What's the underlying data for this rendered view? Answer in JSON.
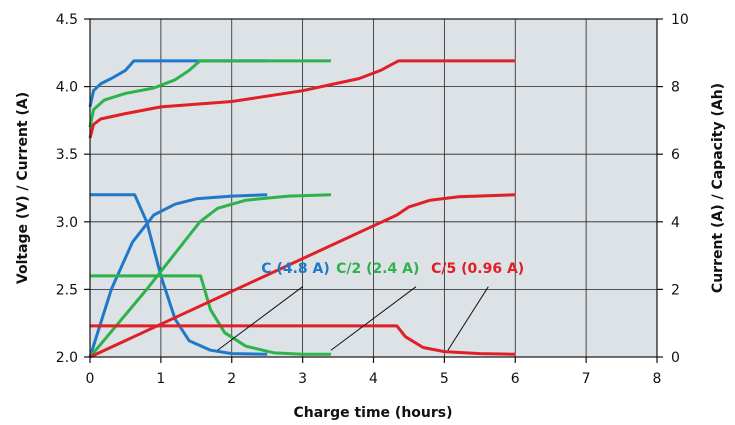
{
  "chart_data": {
    "type": "line",
    "title": "",
    "xlabel": "Charge time (hours)",
    "ylabel_left": "Voltage (V) / Current (A)",
    "ylabel_right": "Current (A) / Capacity (Ah)",
    "xlim": [
      0,
      8
    ],
    "ylim_left": [
      2.0,
      4.5
    ],
    "ylim_right": [
      0,
      10
    ],
    "x_ticks": [
      "0",
      "1",
      "2",
      "3",
      "4",
      "5",
      "6",
      "7",
      "8"
    ],
    "y_left_ticks": [
      "2.0",
      "2.5",
      "3.0",
      "3.5",
      "4.0",
      "4.5"
    ],
    "y_right_ticks": [
      "0",
      "2",
      "4",
      "6",
      "8",
      "10"
    ],
    "grid": true,
    "plot_background": "#dde2e7",
    "annotations": [
      {
        "text": "C (4.8 A)",
        "color": "#1f78c8",
        "anchor_x": 6.9,
        "anchor_y": 2.62,
        "target_x": 1.8,
        "target_y": 2.05
      },
      {
        "text": "C/2 (2.4 A)",
        "color": "#2db34a",
        "anchor_x": 4.6,
        "anchor_y": 2.62,
        "target_x": 3.4,
        "target_y": 2.05
      },
      {
        "text": "C/5 (0.96 A)",
        "color": "#e01f26",
        "anchor_x": 5.6,
        "anchor_y": 2.62,
        "target_x": 5.05,
        "target_y": 2.05
      }
    ],
    "series": [
      {
        "group": "C (4.8 A)",
        "quantity": "voltage",
        "axis": "left",
        "color": "#1f78c8",
        "points": [
          [
            0,
            3.85
          ],
          [
            0.05,
            3.97
          ],
          [
            0.15,
            4.02
          ],
          [
            0.3,
            4.06
          ],
          [
            0.5,
            4.12
          ],
          [
            0.62,
            4.19
          ],
          [
            1.0,
            4.19
          ],
          [
            2.0,
            4.19
          ],
          [
            2.5,
            4.19
          ]
        ]
      },
      {
        "group": "C (4.8 A)",
        "quantity": "current",
        "axis": "left",
        "color": "#1f78c8",
        "points": [
          [
            0,
            3.2
          ],
          [
            0.63,
            3.2
          ],
          [
            0.8,
            3.0
          ],
          [
            1.0,
            2.6
          ],
          [
            1.2,
            2.28
          ],
          [
            1.4,
            2.12
          ],
          [
            1.7,
            2.05
          ],
          [
            2.0,
            2.025
          ],
          [
            2.5,
            2.02
          ]
        ]
      },
      {
        "group": "C (4.8 A)",
        "quantity": "capacity",
        "axis": "left",
        "color": "#1f78c8",
        "points": [
          [
            0,
            2.0
          ],
          [
            0.3,
            2.5
          ],
          [
            0.6,
            2.85
          ],
          [
            0.9,
            3.05
          ],
          [
            1.2,
            3.13
          ],
          [
            1.5,
            3.17
          ],
          [
            2.0,
            3.19
          ],
          [
            2.5,
            3.2
          ]
        ]
      },
      {
        "group": "C/2 (2.4 A)",
        "quantity": "voltage",
        "axis": "left",
        "color": "#2db34a",
        "points": [
          [
            0,
            3.7
          ],
          [
            0.05,
            3.83
          ],
          [
            0.2,
            3.9
          ],
          [
            0.5,
            3.95
          ],
          [
            0.9,
            3.99
          ],
          [
            1.2,
            4.05
          ],
          [
            1.4,
            4.12
          ],
          [
            1.55,
            4.19
          ],
          [
            2.0,
            4.19
          ],
          [
            2.5,
            4.19
          ],
          [
            3.4,
            4.19
          ]
        ]
      },
      {
        "group": "C/2 (2.4 A)",
        "quantity": "current",
        "axis": "left",
        "color": "#2db34a",
        "points": [
          [
            0,
            2.6
          ],
          [
            1.56,
            2.6
          ],
          [
            1.7,
            2.35
          ],
          [
            1.9,
            2.18
          ],
          [
            2.2,
            2.08
          ],
          [
            2.6,
            2.03
          ],
          [
            3.0,
            2.02
          ],
          [
            3.4,
            2.02
          ]
        ]
      },
      {
        "group": "C/2 (2.4 A)",
        "quantity": "capacity",
        "axis": "left",
        "color": "#2db34a",
        "points": [
          [
            0,
            2.0
          ],
          [
            0.8,
            2.5
          ],
          [
            1.55,
            3.0
          ],
          [
            1.8,
            3.1
          ],
          [
            2.2,
            3.16
          ],
          [
            2.8,
            3.19
          ],
          [
            3.4,
            3.2
          ]
        ]
      },
      {
        "group": "C/5 (0.96 A)",
        "quantity": "voltage",
        "axis": "left",
        "color": "#e01f26",
        "points": [
          [
            0,
            3.62
          ],
          [
            0.05,
            3.72
          ],
          [
            0.15,
            3.76
          ],
          [
            0.5,
            3.8
          ],
          [
            1.0,
            3.85
          ],
          [
            2.0,
            3.89
          ],
          [
            3.0,
            3.97
          ],
          [
            3.8,
            4.06
          ],
          [
            4.1,
            4.12
          ],
          [
            4.35,
            4.19
          ],
          [
            5.0,
            4.19
          ],
          [
            6.0,
            4.19
          ]
        ]
      },
      {
        "group": "C/5 (0.96 A)",
        "quantity": "current",
        "axis": "left",
        "color": "#e01f26",
        "points": [
          [
            0,
            2.23
          ],
          [
            4.33,
            2.23
          ],
          [
            4.45,
            2.15
          ],
          [
            4.7,
            2.07
          ],
          [
            5.0,
            2.04
          ],
          [
            5.5,
            2.025
          ],
          [
            6.0,
            2.02
          ]
        ]
      },
      {
        "group": "C/5 (0.96 A)",
        "quantity": "capacity",
        "axis": "left",
        "color": "#e01f26",
        "points": [
          [
            0,
            2.0
          ],
          [
            4.33,
            3.05
          ],
          [
            4.5,
            3.11
          ],
          [
            4.8,
            3.16
          ],
          [
            5.2,
            3.185
          ],
          [
            6.0,
            3.2
          ]
        ]
      }
    ]
  }
}
